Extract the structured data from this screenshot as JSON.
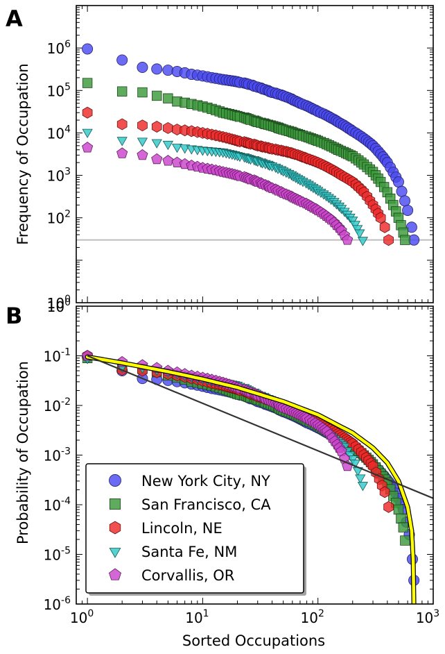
{
  "figure": {
    "panel_a_letter": "A",
    "panel_b_letter": "B",
    "x_label": "Sorted Occupations",
    "panel_a_y_label": "Frequency of Occupation",
    "panel_b_y_label": "Probability of Occupation"
  },
  "chart_data": [
    {
      "type": "scatter",
      "panel": "A",
      "xlabel": "Sorted Occupations",
      "ylabel": "Frequency of Occupation",
      "xscale": "log",
      "yscale": "log",
      "xlim": [
        0.8,
        1000
      ],
      "ylim": [
        1,
        10000000
      ],
      "y_ticks": [
        {
          "base": "10",
          "exp": "0",
          "value": 1
        },
        {
          "base": "10",
          "exp": "2",
          "value": 100
        },
        {
          "base": "10",
          "exp": "3",
          "value": 1000
        },
        {
          "base": "10",
          "exp": "4",
          "value": 10000
        },
        {
          "base": "10",
          "exp": "5",
          "value": 100000
        },
        {
          "base": "10",
          "exp": "6",
          "value": 1000000
        }
      ],
      "reference_line_y": 30,
      "series": [
        {
          "name": "New York City, NY",
          "marker": "circle",
          "color": "#4b4bf0",
          "x": [
            1,
            2,
            3,
            4,
            5,
            6,
            7,
            8,
            10,
            12,
            15,
            20,
            25,
            30,
            40,
            50,
            70,
            100,
            150,
            200,
            300,
            400,
            500,
            600,
            650,
            680
          ],
          "y": [
            950000,
            520000,
            350000,
            320000,
            300000,
            280000,
            260000,
            240000,
            220000,
            200000,
            180000,
            160000,
            140000,
            120000,
            90000,
            75000,
            50000,
            32000,
            18000,
            11000,
            5000,
            2000,
            700,
            150,
            60,
            30
          ]
        },
        {
          "name": "San Francisco, CA",
          "marker": "square",
          "color": "#3c9a3c",
          "x": [
            1,
            2,
            3,
            4,
            5,
            6,
            8,
            10,
            15,
            20,
            30,
            50,
            70,
            100,
            150,
            200,
            250,
            300,
            350,
            400,
            450,
            500,
            550,
            570
          ],
          "y": [
            150000,
            95000,
            90000,
            75000,
            65000,
            55000,
            48000,
            42000,
            30000,
            25000,
            18000,
            12000,
            9000,
            6500,
            4000,
            2800,
            1800,
            1200,
            700,
            400,
            200,
            100,
            45,
            30
          ]
        },
        {
          "name": "Lincoln, NE",
          "marker": "hexagon",
          "color": "#ee2a2a",
          "x": [
            1,
            2,
            3,
            4,
            5,
            6,
            8,
            10,
            15,
            20,
            30,
            40,
            60,
            80,
            100,
            130,
            160,
            200,
            250,
            300,
            350,
            380,
            410
          ],
          "y": [
            30000,
            16000,
            15000,
            14000,
            13000,
            12000,
            11000,
            10000,
            8000,
            6500,
            5000,
            4200,
            3300,
            2500,
            2000,
            1400,
            1000,
            700,
            400,
            200,
            100,
            60,
            30
          ]
        },
        {
          "name": "Santa Fe, NM",
          "marker": "triangle-down",
          "color": "#30c8c8",
          "x": [
            1,
            2,
            3,
            4,
            5,
            6,
            8,
            10,
            15,
            20,
            30,
            40,
            50,
            70,
            100,
            130,
            160,
            200,
            230,
            245
          ],
          "y": [
            10500,
            6800,
            6500,
            6000,
            5500,
            4700,
            4300,
            4000,
            3600,
            3000,
            2200,
            1700,
            1300,
            800,
            450,
            280,
            170,
            90,
            45,
            30
          ]
        },
        {
          "name": "Corvallis, OR",
          "marker": "pentagon",
          "color": "#cc44cc",
          "x": [
            1,
            2,
            3,
            4,
            5,
            6,
            8,
            10,
            15,
            20,
            30,
            40,
            50,
            70,
            100,
            130,
            160,
            180
          ],
          "y": [
            4500,
            3300,
            3000,
            2400,
            2200,
            2000,
            1700,
            1500,
            1200,
            1000,
            700,
            500,
            380,
            250,
            150,
            90,
            50,
            30
          ]
        }
      ]
    },
    {
      "type": "scatter",
      "panel": "B",
      "xlabel": "Sorted Occupations",
      "ylabel": "Probability of Occupation",
      "xscale": "log",
      "yscale": "log",
      "xlim": [
        0.8,
        1000
      ],
      "ylim": [
        1e-06,
        1
      ],
      "x_ticks": [
        {
          "base": "10",
          "exp": "0",
          "value": 1
        },
        {
          "base": "10",
          "exp": "1",
          "value": 10
        },
        {
          "base": "10",
          "exp": "2",
          "value": 100
        },
        {
          "base": "10",
          "exp": "3",
          "value": 1000
        }
      ],
      "y_ticks": [
        {
          "base": "10",
          "exp": "-6",
          "value": 1e-06
        },
        {
          "base": "10",
          "exp": "-5",
          "value": 1e-05
        },
        {
          "base": "10",
          "exp": "-4",
          "value": 0.0001
        },
        {
          "base": "10",
          "exp": "-3",
          "value": 0.001
        },
        {
          "base": "10",
          "exp": "-2",
          "value": 0.01
        },
        {
          "base": "10",
          "exp": "-1",
          "value": 0.1
        },
        {
          "base": "10",
          "exp": "0",
          "value": 1
        }
      ],
      "legend_position": "lower-left",
      "series": [
        {
          "name": "New York City, NY",
          "marker": "circle",
          "color": "#4b4bf0",
          "x": [
            1,
            2,
            3,
            5,
            8,
            12,
            20,
            30,
            50,
            80,
            120,
            200,
            300,
            450,
            550,
            620,
            660,
            680
          ],
          "y": [
            0.095,
            0.05,
            0.035,
            0.032,
            0.027,
            0.022,
            0.017,
            0.012,
            0.0075,
            0.0045,
            0.0028,
            0.0014,
            0.00065,
            0.00022,
            8e-05,
            2.5e-05,
            8e-06,
            3e-06
          ]
        },
        {
          "name": "San Francisco, CA",
          "marker": "square",
          "color": "#3c9a3c",
          "x": [
            1,
            2,
            3,
            5,
            8,
            12,
            20,
            30,
            50,
            80,
            120,
            200,
            300,
            400,
            500,
            550,
            570
          ],
          "y": [
            0.09,
            0.06,
            0.055,
            0.04,
            0.03,
            0.025,
            0.017,
            0.013,
            0.008,
            0.005,
            0.003,
            0.0015,
            0.00065,
            0.00028,
            8e-05,
            3.5e-05,
            1.9e-05
          ]
        },
        {
          "name": "Lincoln, NE",
          "marker": "hexagon",
          "color": "#ee2a2a",
          "x": [
            1,
            2,
            3,
            5,
            8,
            12,
            20,
            30,
            50,
            80,
            120,
            200,
            300,
            380,
            410
          ],
          "y": [
            0.1,
            0.052,
            0.05,
            0.043,
            0.035,
            0.028,
            0.021,
            0.015,
            0.01,
            0.006,
            0.0035,
            0.0017,
            0.0006,
            0.00018,
            9e-05
          ]
        },
        {
          "name": "Santa Fe, NM",
          "marker": "triangle-down",
          "color": "#30c8c8",
          "x": [
            1,
            2,
            3,
            5,
            8,
            12,
            20,
            30,
            50,
            80,
            120,
            170,
            210,
            245
          ],
          "y": [
            0.09,
            0.06,
            0.058,
            0.048,
            0.038,
            0.032,
            0.026,
            0.017,
            0.01,
            0.0055,
            0.0028,
            0.0015,
            0.0007,
            0.00025
          ]
        },
        {
          "name": "Corvallis, OR",
          "marker": "pentagon",
          "color": "#cc44cc",
          "x": [
            1,
            2,
            3,
            5,
            8,
            12,
            20,
            30,
            50,
            80,
            120,
            160,
            180
          ],
          "y": [
            0.1,
            0.075,
            0.065,
            0.05,
            0.04,
            0.033,
            0.023,
            0.016,
            0.009,
            0.0055,
            0.003,
            0.0012,
            0.0006
          ]
        }
      ],
      "fit_curves": [
        {
          "color": "#ffff00",
          "x": [
            1,
            2,
            5,
            10,
            20,
            50,
            100,
            200,
            300,
            400,
            500,
            600,
            650,
            670,
            680
          ],
          "y": [
            0.095,
            0.072,
            0.048,
            0.034,
            0.023,
            0.012,
            0.0065,
            0.0028,
            0.0014,
            0.0007,
            0.0003,
            9e-05,
            3e-05,
            8e-06,
            1e-06
          ]
        },
        {
          "color": "#333333",
          "x": [
            1,
            1000
          ],
          "y": [
            0.1,
            0.000135
          ]
        }
      ]
    }
  ]
}
